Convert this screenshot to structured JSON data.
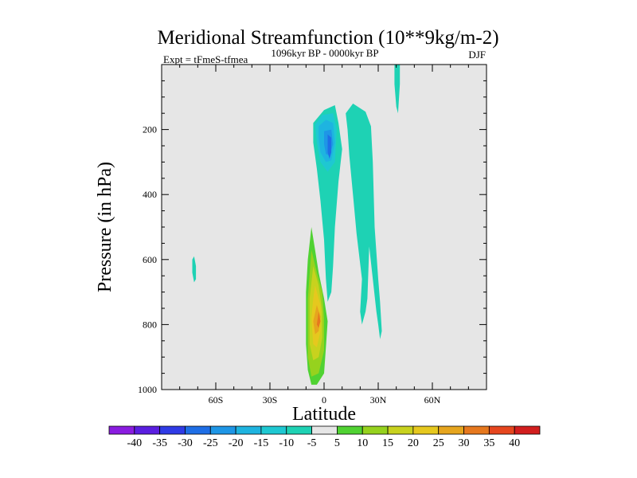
{
  "chart_data": {
    "type": "contour",
    "title": "Meridional Streamfunction (10**9kg/m-2)",
    "subtitle_left": "Expt = tFmeS-tfmea",
    "subtitle_center": "1096kyr BP - 0000kyr BP",
    "subtitle_right": "DJF",
    "xlabel": "Latitude",
    "ylabel": "Pressure (in hPa)",
    "xlim": [
      -90,
      90
    ],
    "ylim": [
      1000,
      0
    ],
    "x_ticks": [
      {
        "value": -60,
        "label": "60S"
      },
      {
        "value": -30,
        "label": "30S"
      },
      {
        "value": 0,
        "label": "0"
      },
      {
        "value": 30,
        "label": "30N"
      },
      {
        "value": 60,
        "label": "60N"
      }
    ],
    "y_ticks": [
      {
        "value": 200,
        "label": "200"
      },
      {
        "value": 400,
        "label": "400"
      },
      {
        "value": 600,
        "label": "600"
      },
      {
        "value": 800,
        "label": "800"
      },
      {
        "value": 1000,
        "label": "1000"
      }
    ],
    "y_minor_step": 50,
    "x_minor_step": 10,
    "background_color": "#e6e6e6",
    "colorbar": {
      "labels": [
        "-40",
        "-35",
        "-30",
        "-25",
        "-20",
        "-15",
        "-10",
        "-5",
        "5",
        "10",
        "15",
        "20",
        "25",
        "30",
        "35",
        "40"
      ],
      "colors": [
        "#8a1ce0",
        "#5a1ee0",
        "#2f3be6",
        "#1e6ee6",
        "#1e96e6",
        "#1eb4e0",
        "#1ec8d2",
        "#1ed2b4",
        "#e6e6e6",
        "#50d232",
        "#96d21e",
        "#c8d21e",
        "#e6c81e",
        "#e6a51e",
        "#e6781e",
        "#e6461e",
        "#d21e1e"
      ]
    },
    "features": [
      {
        "name": "upper-tropical-cell",
        "value_range": [
          -25,
          -5
        ],
        "min_value": -25,
        "center": [
          3,
          240
        ],
        "levels": [
          {
            "value": -5,
            "points": [
              [
                -6,
                180
              ],
              [
                0,
                140
              ],
              [
                6,
                125
              ],
              [
                8,
                180
              ],
              [
                10,
                260
              ],
              [
                8,
                360
              ],
              [
                6,
                500
              ],
              [
                5,
                620
              ],
              [
                4,
                700
              ],
              [
                2,
                730
              ],
              [
                1,
                660
              ],
              [
                0,
                540
              ],
              [
                -2,
                420
              ],
              [
                -4,
                320
              ],
              [
                -6,
                240
              ]
            ]
          },
          {
            "value": -10,
            "points": [
              [
                -5,
                185
              ],
              [
                -1,
                155
              ],
              [
                5,
                150
              ],
              [
                7,
                200
              ],
              [
                6,
                300
              ],
              [
                2,
                330
              ],
              [
                -2,
                300
              ],
              [
                -4,
                240
              ]
            ]
          },
          {
            "value": -15,
            "points": [
              [
                -3,
                190
              ],
              [
                1,
                170
              ],
              [
                5,
                180
              ],
              [
                6,
                240
              ],
              [
                4,
                295
              ],
              [
                1,
                300
              ],
              [
                -2,
                270
              ],
              [
                -3,
                225
              ]
            ]
          },
          {
            "value": -20,
            "points": [
              [
                0,
                205
              ],
              [
                4,
                200
              ],
              [
                5,
                245
              ],
              [
                3,
                280
              ],
              [
                1,
                275
              ],
              [
                0,
                245
              ]
            ]
          },
          {
            "value": -25,
            "points": [
              [
                2,
                215
              ],
              [
                4,
                225
              ],
              [
                4,
                270
              ],
              [
                3,
                290
              ],
              [
                2,
                270
              ]
            ]
          }
        ]
      },
      {
        "name": "northern-branch",
        "value_range": [
          -10,
          -5
        ],
        "min_value": -10,
        "center": [
          22,
          450
        ],
        "levels": [
          {
            "value": -5,
            "points": [
              [
                12,
                150
              ],
              [
                16,
                120
              ],
              [
                23,
                145
              ],
              [
                26,
                190
              ],
              [
                27,
                300
              ],
              [
                28,
                500
              ],
              [
                30,
                660
              ],
              [
                31,
                730
              ],
              [
                32,
                820
              ],
              [
                31,
                845
              ],
              [
                30,
                800
              ],
              [
                29,
                760
              ],
              [
                27,
                660
              ],
              [
                25,
                560
              ],
              [
                24,
                720
              ],
              [
                23,
                760
              ],
              [
                21,
                800
              ],
              [
                20,
                760
              ],
              [
                21,
                660
              ],
              [
                18,
                520
              ],
              [
                16,
                400
              ],
              [
                14,
                280
              ],
              [
                13,
                200
              ]
            ]
          }
        ]
      },
      {
        "name": "polar-sliver",
        "value_range": [
          -10,
          -5
        ],
        "min_value": -10,
        "center": [
          41,
          60
        ],
        "levels": [
          {
            "value": -5,
            "points": [
              [
                39,
                0
              ],
              [
                42,
                0
              ],
              [
                42,
                60
              ],
              [
                41,
                150
              ],
              [
                40,
                130
              ],
              [
                39,
                60
              ]
            ]
          }
        ]
      },
      {
        "name": "southern-speck",
        "value_range": [
          -10,
          -5
        ],
        "min_value": -10,
        "center": [
          -72,
          625
        ],
        "levels": [
          {
            "value": -5,
            "points": [
              [
                -72,
                590
              ],
              [
                -71,
                620
              ],
              [
                -71,
                660
              ],
              [
                -72,
                670
              ],
              [
                -73,
                640
              ],
              [
                -73,
                600
              ]
            ]
          }
        ]
      },
      {
        "name": "lower-cell",
        "value_range": [
          5,
          30
        ],
        "max_value": 30,
        "center": [
          -4,
          780
        ],
        "levels": [
          {
            "value": 5,
            "points": [
              [
                -7,
                500
              ],
              [
                -5,
                570
              ],
              [
                -3,
                640
              ],
              [
                0,
                720
              ],
              [
                2,
                790
              ],
              [
                1,
                870
              ],
              [
                0,
                950
              ],
              [
                -4,
                985
              ],
              [
                -7,
                985
              ],
              [
                -9,
                940
              ],
              [
                -10,
                860
              ],
              [
                -10,
                700
              ],
              [
                -9,
                600
              ]
            ]
          },
          {
            "value": 10,
            "points": [
              [
                -7,
                570
              ],
              [
                -4,
                640
              ],
              [
                -1,
                700
              ],
              [
                0,
                780
              ],
              [
                0,
                880
              ],
              [
                -3,
                950
              ],
              [
                -7,
                960
              ],
              [
                -9,
                900
              ],
              [
                -9,
                720
              ]
            ]
          },
          {
            "value": 15,
            "points": [
              [
                -6,
                620
              ],
              [
                -3,
                680
              ],
              [
                -1,
                760
              ],
              [
                -1,
                840
              ],
              [
                -3,
                900
              ],
              [
                -6,
                910
              ],
              [
                -8,
                860
              ],
              [
                -8,
                720
              ]
            ]
          },
          {
            "value": 20,
            "points": [
              [
                -5,
                680
              ],
              [
                -2,
                740
              ],
              [
                -2,
                820
              ],
              [
                -4,
                870
              ],
              [
                -6,
                860
              ],
              [
                -7,
                780
              ],
              [
                -6,
                720
              ]
            ]
          },
          {
            "value": 25,
            "points": [
              [
                -4,
                740
              ],
              [
                -2,
                775
              ],
              [
                -3,
                820
              ],
              [
                -5,
                830
              ],
              [
                -6,
                790
              ]
            ]
          },
          {
            "value": 30,
            "points": [
              [
                -3,
                760
              ],
              [
                -2,
                790
              ],
              [
                -3,
                810
              ],
              [
                -4,
                800
              ]
            ]
          }
        ]
      }
    ]
  }
}
